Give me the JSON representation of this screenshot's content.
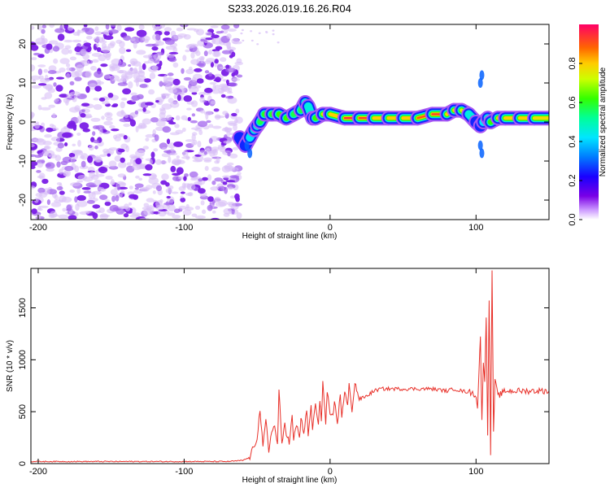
{
  "title": "S233.2026.019.16.26.R04",
  "colors": {
    "snr_line": "#e8312a",
    "noise": "#8a2be2"
  },
  "chart_data": [
    {
      "type": "heatmap",
      "xlabel": "Height of straight line (km)",
      "ylabel": "Frequency (Hz)",
      "xlim": [
        -205,
        150
      ],
      "ylim": [
        -25,
        25
      ],
      "xticks": [
        -200,
        -100,
        0,
        100
      ],
      "yticks": [
        -20,
        -10,
        0,
        10,
        20
      ],
      "colorbar": {
        "label": "Normalized spectral amplitude",
        "range": [
          0,
          1
        ],
        "ticks": [
          "0.0",
          "0.2",
          "0.4",
          "0.6",
          "0.8"
        ],
        "colormap": "rainbow"
      },
      "noise_region_km": [
        -205,
        -62
      ],
      "signal_ridge": {
        "x": [
          -62,
          -58,
          -55,
          -52,
          -50,
          -48,
          -45,
          -40,
          -35,
          -30,
          -25,
          -20,
          -17,
          -15,
          -12,
          -10,
          -5,
          0,
          10,
          20,
          30,
          40,
          50,
          60,
          70,
          80,
          85,
          90,
          95,
          100,
          103,
          105,
          108,
          110,
          115,
          120,
          130,
          140,
          150
        ],
        "freq": [
          -4,
          -6,
          -4,
          -2,
          -1,
          0,
          2,
          2,
          2,
          1,
          2,
          3,
          5,
          4,
          1,
          1,
          2,
          2,
          1,
          1,
          1,
          1,
          1,
          1,
          2,
          2,
          3,
          3,
          2,
          0,
          -1,
          0,
          1,
          0,
          1,
          1,
          1,
          1,
          1
        ],
        "amplitude": [
          0.35,
          0.3,
          0.4,
          0.45,
          0.5,
          0.55,
          0.6,
          0.6,
          0.6,
          0.65,
          0.6,
          0.55,
          0.6,
          0.5,
          0.6,
          0.7,
          0.75,
          0.8,
          0.95,
          0.95,
          0.9,
          0.85,
          0.8,
          0.85,
          0.95,
          0.9,
          0.85,
          0.8,
          0.7,
          0.4,
          0.3,
          0.35,
          0.5,
          0.6,
          0.8,
          0.9,
          0.85,
          0.8,
          0.75
        ]
      }
    },
    {
      "type": "line",
      "xlabel": "Height of straight line (km)",
      "ylabel": "SNR (10 * v/v)",
      "xlim": [
        -205,
        150
      ],
      "ylim": [
        0,
        1880
      ],
      "xticks": [
        -200,
        -100,
        0,
        100
      ],
      "yticks": [
        0,
        500,
        1000,
        1500
      ],
      "series": [
        {
          "x": [
            -205,
            -150,
            -100,
            -70,
            -60,
            -55,
            -50,
            -48,
            -46,
            -44,
            -42,
            -40,
            -38,
            -36,
            -35,
            -33,
            -31,
            -30,
            -28,
            -26,
            -25,
            -23,
            -21,
            -20,
            -18,
            -16,
            -15,
            -13,
            -12,
            -10,
            -8,
            -7,
            -6,
            -5,
            -3,
            -2,
            0,
            2,
            3,
            5,
            7,
            8,
            10,
            12,
            13,
            15,
            17,
            20,
            25,
            30,
            35,
            40,
            50,
            60,
            70,
            80,
            85,
            90,
            95,
            97,
            100,
            101,
            102,
            103,
            104,
            105,
            106,
            107,
            108,
            109,
            110,
            111,
            112,
            113,
            115,
            120,
            130,
            140,
            150
          ],
          "y": [
            20,
            20,
            20,
            20,
            30,
            60,
            250,
            520,
            150,
            420,
            120,
            330,
            350,
            180,
            710,
            170,
            400,
            300,
            200,
            450,
            220,
            380,
            250,
            430,
            300,
            500,
            270,
            550,
            330,
            580,
            350,
            620,
            420,
            780,
            380,
            700,
            450,
            450,
            600,
            400,
            650,
            460,
            700,
            550,
            750,
            520,
            780,
            620,
            650,
            700,
            720,
            720,
            720,
            720,
            720,
            700,
            720,
            700,
            690,
            680,
            660,
            520,
            900,
            1200,
            400,
            1000,
            800,
            1400,
            300,
            1600,
            100,
            1880,
            300,
            800,
            650,
            700,
            700,
            700,
            700
          ]
        }
      ]
    }
  ]
}
